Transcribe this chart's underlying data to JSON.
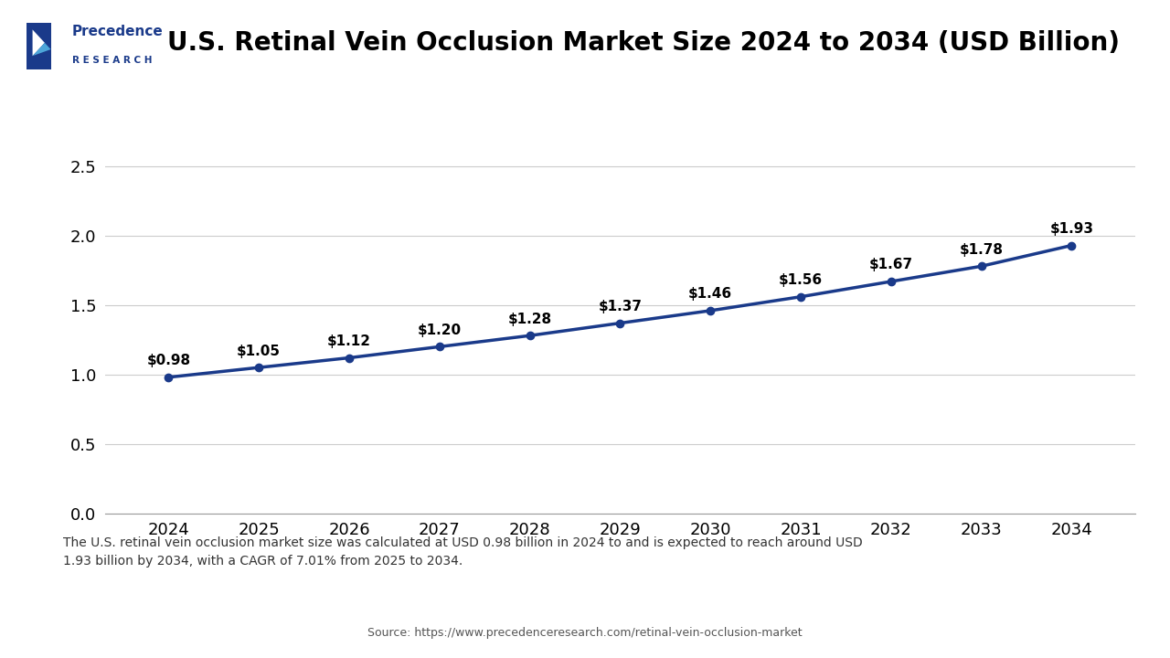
{
  "title": "U.S. Retinal Vein Occlusion Market Size 2024 to 2034 (USD Billion)",
  "years": [
    2024,
    2025,
    2026,
    2027,
    2028,
    2029,
    2030,
    2031,
    2032,
    2033,
    2034
  ],
  "values": [
    0.98,
    1.05,
    1.12,
    1.2,
    1.28,
    1.37,
    1.46,
    1.56,
    1.67,
    1.78,
    1.93
  ],
  "labels": [
    "$0.98",
    "$1.05",
    "$1.12",
    "$1.20",
    "$1.28",
    "$1.37",
    "$1.46",
    "$1.56",
    "$1.67",
    "$1.78",
    "$1.93"
  ],
  "line_color": "#1a3a8a",
  "marker_color": "#1a3a8a",
  "ylim": [
    0,
    2.75
  ],
  "yticks": [
    0,
    0.5,
    1,
    1.5,
    2,
    2.5
  ],
  "background_color": "#ffffff",
  "plot_bg_color": "#ffffff",
  "grid_color": "#cccccc",
  "title_fontsize": 20,
  "tick_fontsize": 13,
  "label_fontsize": 11,
  "footnote_text": "The U.S. retinal vein occlusion market size was calculated at USD 0.98 billion in 2024 to and is expected to reach around USD\n1.93 billion by 2034, with a CAGR of 7.01% from 2025 to 2034.",
  "source_text": "Source: https://www.precedenceresearch.com/retinal-vein-occlusion-market",
  "logo_text_line1": "Precedence",
  "logo_text_line2": "R E S E A R C H",
  "header_line_color": "#1a3a8a",
  "footnote_bg_color": "#dce9f7"
}
